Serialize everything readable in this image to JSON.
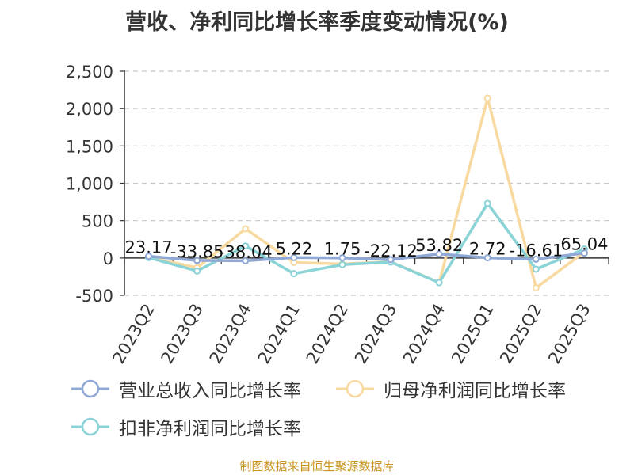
{
  "title": "营收、净利同比增长率季度变动情况(%)",
  "source": "制图数据来自恒生聚源数据库",
  "chart_data": {
    "type": "line",
    "categories": [
      "2023Q2",
      "2023Q3",
      "2023Q4",
      "2024Q1",
      "2024Q2",
      "2024Q3",
      "2024Q4",
      "2025Q1",
      "2025Q2",
      "2025Q3"
    ],
    "ylim": [
      -500,
      2500
    ],
    "yticks": [
      -500,
      0,
      500,
      1000,
      1500,
      2000,
      2500
    ],
    "ytick_labels": [
      "-500",
      "0",
      "500",
      "1,000",
      "1,500",
      "2,000",
      "2,500"
    ],
    "grid": true,
    "legend_position": "bottom",
    "series": [
      {
        "name": "营业总收入同比增长率",
        "color": "#8fa8d6",
        "values": [
          23.17,
          -33.85,
          -38.04,
          5.22,
          1.75,
          -22.12,
          53.82,
          2.72,
          -16.61,
          65.04
        ],
        "labels": [
          "23.17",
          "-33.85",
          "-38.04",
          "5.22",
          "1.75",
          "-22.12",
          "53.82",
          "2.72",
          "-16.61",
          "65.04"
        ]
      },
      {
        "name": "归母净利润同比增长率",
        "color": "#f8d9a0",
        "values": [
          10,
          -130,
          390,
          -60,
          -80,
          -50,
          -330,
          2140,
          -400,
          80
        ]
      },
      {
        "name": "扣非净利润同比增长率",
        "color": "#8ad3d6",
        "values": [
          5,
          -175,
          160,
          -210,
          -90,
          -55,
          -330,
          730,
          -150,
          120
        ]
      }
    ]
  }
}
